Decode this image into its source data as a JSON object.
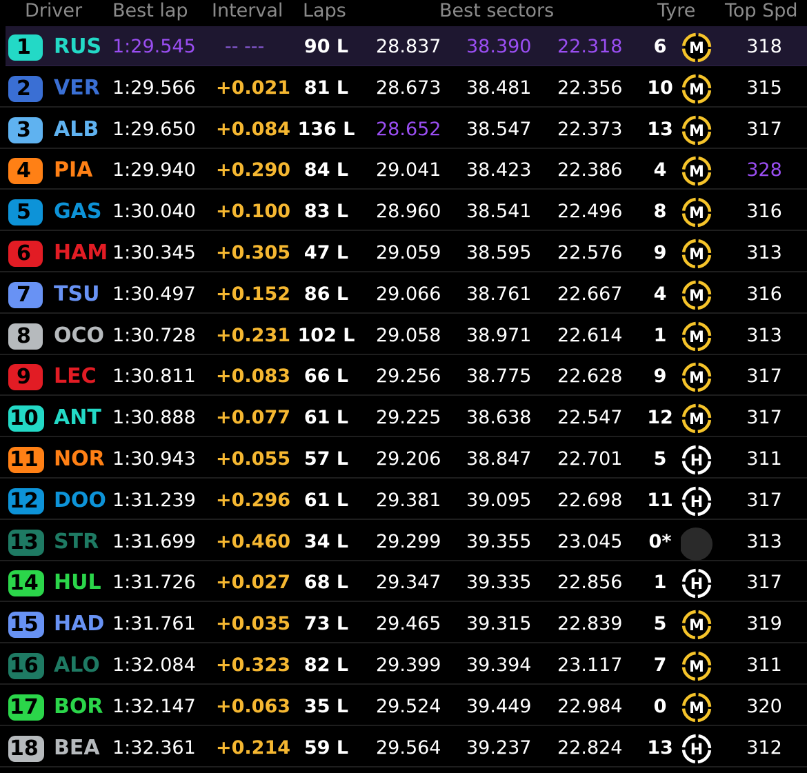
{
  "header": {
    "driver": "Driver",
    "best_lap": "Best lap",
    "interval": "Interval",
    "laps": "Laps",
    "best_sectors": "Best sectors",
    "tyre": "Tyre",
    "top_speed": "Top Spd"
  },
  "colors": {
    "fastest_purple": "#9a4ef2",
    "interval_yellow": "#f5b731",
    "medium_tyre": "#f6c42a",
    "hard_tyre": "#ffffff"
  },
  "rows": [
    {
      "pos": "1",
      "abbr": "RUS",
      "team_color": "#23d9c6",
      "best_lap": "1:29.545",
      "interval": "-- ---",
      "laps": "90 L",
      "s1": "28.837",
      "s2": "38.390",
      "s3": "22.318",
      "tyre_age": "6",
      "tyre": "M",
      "speed": "318"
    },
    {
      "pos": "2",
      "abbr": "VER",
      "team_color": "#3a6fd4",
      "best_lap": "1:29.566",
      "interval": "+0.021",
      "laps": "81 L",
      "s1": "28.673",
      "s2": "38.481",
      "s3": "22.356",
      "tyre_age": "10",
      "tyre": "M",
      "speed": "315"
    },
    {
      "pos": "3",
      "abbr": "ALB",
      "team_color": "#5fb2f0",
      "best_lap": "1:29.650",
      "interval": "+0.084",
      "laps": "136 L",
      "s1": "28.652",
      "s2": "38.547",
      "s3": "22.373",
      "tyre_age": "13",
      "tyre": "M",
      "speed": "317"
    },
    {
      "pos": "4",
      "abbr": "PIA",
      "team_color": "#ff8015",
      "best_lap": "1:29.940",
      "interval": "+0.290",
      "laps": "84 L",
      "s1": "29.041",
      "s2": "38.423",
      "s3": "22.386",
      "tyre_age": "4",
      "tyre": "M",
      "speed": "328"
    },
    {
      "pos": "5",
      "abbr": "GAS",
      "team_color": "#0d93d8",
      "best_lap": "1:30.040",
      "interval": "+0.100",
      "laps": "83 L",
      "s1": "28.960",
      "s2": "38.541",
      "s3": "22.496",
      "tyre_age": "8",
      "tyre": "M",
      "speed": "316"
    },
    {
      "pos": "6",
      "abbr": "HAM",
      "team_color": "#e21c24",
      "best_lap": "1:30.345",
      "interval": "+0.305",
      "laps": "47 L",
      "s1": "29.059",
      "s2": "38.595",
      "s3": "22.576",
      "tyre_age": "9",
      "tyre": "M",
      "speed": "313"
    },
    {
      "pos": "7",
      "abbr": "TSU",
      "team_color": "#6892f4",
      "best_lap": "1:30.497",
      "interval": "+0.152",
      "laps": "86 L",
      "s1": "29.066",
      "s2": "38.761",
      "s3": "22.667",
      "tyre_age": "4",
      "tyre": "M",
      "speed": "316"
    },
    {
      "pos": "8",
      "abbr": "OCO",
      "team_color": "#b6babd",
      "best_lap": "1:30.728",
      "interval": "+0.231",
      "laps": "102 L",
      "s1": "29.058",
      "s2": "38.971",
      "s3": "22.614",
      "tyre_age": "1",
      "tyre": "M",
      "speed": "313"
    },
    {
      "pos": "9",
      "abbr": "LEC",
      "team_color": "#e21c24",
      "best_lap": "1:30.811",
      "interval": "+0.083",
      "laps": "66 L",
      "s1": "29.256",
      "s2": "38.775",
      "s3": "22.628",
      "tyre_age": "9",
      "tyre": "M",
      "speed": "317"
    },
    {
      "pos": "10",
      "abbr": "ANT",
      "team_color": "#23d9c6",
      "best_lap": "1:30.888",
      "interval": "+0.077",
      "laps": "61 L",
      "s1": "29.225",
      "s2": "38.638",
      "s3": "22.547",
      "tyre_age": "12",
      "tyre": "M",
      "speed": "317"
    },
    {
      "pos": "11",
      "abbr": "NOR",
      "team_color": "#ff8015",
      "best_lap": "1:30.943",
      "interval": "+0.055",
      "laps": "57 L",
      "s1": "29.206",
      "s2": "38.847",
      "s3": "22.701",
      "tyre_age": "5",
      "tyre": "H",
      "speed": "311"
    },
    {
      "pos": "12",
      "abbr": "DOO",
      "team_color": "#0d93d8",
      "best_lap": "1:31.239",
      "interval": "+0.296",
      "laps": "61 L",
      "s1": "29.381",
      "s2": "39.095",
      "s3": "22.698",
      "tyre_age": "11",
      "tyre": "H",
      "speed": "317"
    },
    {
      "pos": "13",
      "abbr": "STR",
      "team_color": "#1e7a63",
      "best_lap": "1:31.699",
      "interval": "+0.460",
      "laps": "34 L",
      "s1": "29.299",
      "s2": "39.355",
      "s3": "23.045",
      "tyre_age": "0*",
      "tyre": "",
      "speed": "313"
    },
    {
      "pos": "14",
      "abbr": "HUL",
      "team_color": "#2bd64a",
      "best_lap": "1:31.726",
      "interval": "+0.027",
      "laps": "68 L",
      "s1": "29.347",
      "s2": "39.335",
      "s3": "22.856",
      "tyre_age": "1",
      "tyre": "H",
      "speed": "317"
    },
    {
      "pos": "15",
      "abbr": "HAD",
      "team_color": "#6892f4",
      "best_lap": "1:31.761",
      "interval": "+0.035",
      "laps": "73 L",
      "s1": "29.465",
      "s2": "39.315",
      "s3": "22.839",
      "tyre_age": "5",
      "tyre": "M",
      "speed": "319"
    },
    {
      "pos": "16",
      "abbr": "ALO",
      "team_color": "#1e7a63",
      "best_lap": "1:32.084",
      "interval": "+0.323",
      "laps": "82 L",
      "s1": "29.399",
      "s2": "39.394",
      "s3": "23.117",
      "tyre_age": "7",
      "tyre": "M",
      "speed": "311"
    },
    {
      "pos": "17",
      "abbr": "BOR",
      "team_color": "#2bd64a",
      "best_lap": "1:32.147",
      "interval": "+0.063",
      "laps": "35 L",
      "s1": "29.524",
      "s2": "39.449",
      "s3": "22.984",
      "tyre_age": "0",
      "tyre": "M",
      "speed": "320"
    },
    {
      "pos": "18",
      "abbr": "BEA",
      "team_color": "#b6babd",
      "best_lap": "1:32.361",
      "interval": "+0.214",
      "laps": "59 L",
      "s1": "29.564",
      "s2": "39.237",
      "s3": "22.824",
      "tyre_age": "13",
      "tyre": "H",
      "speed": "312"
    }
  ],
  "fastest": {
    "best_lap_row": 0,
    "s1_row": 2,
    "s2_row": 0,
    "s3_row": 0,
    "speed_row": 3
  },
  "selected_row": 0
}
